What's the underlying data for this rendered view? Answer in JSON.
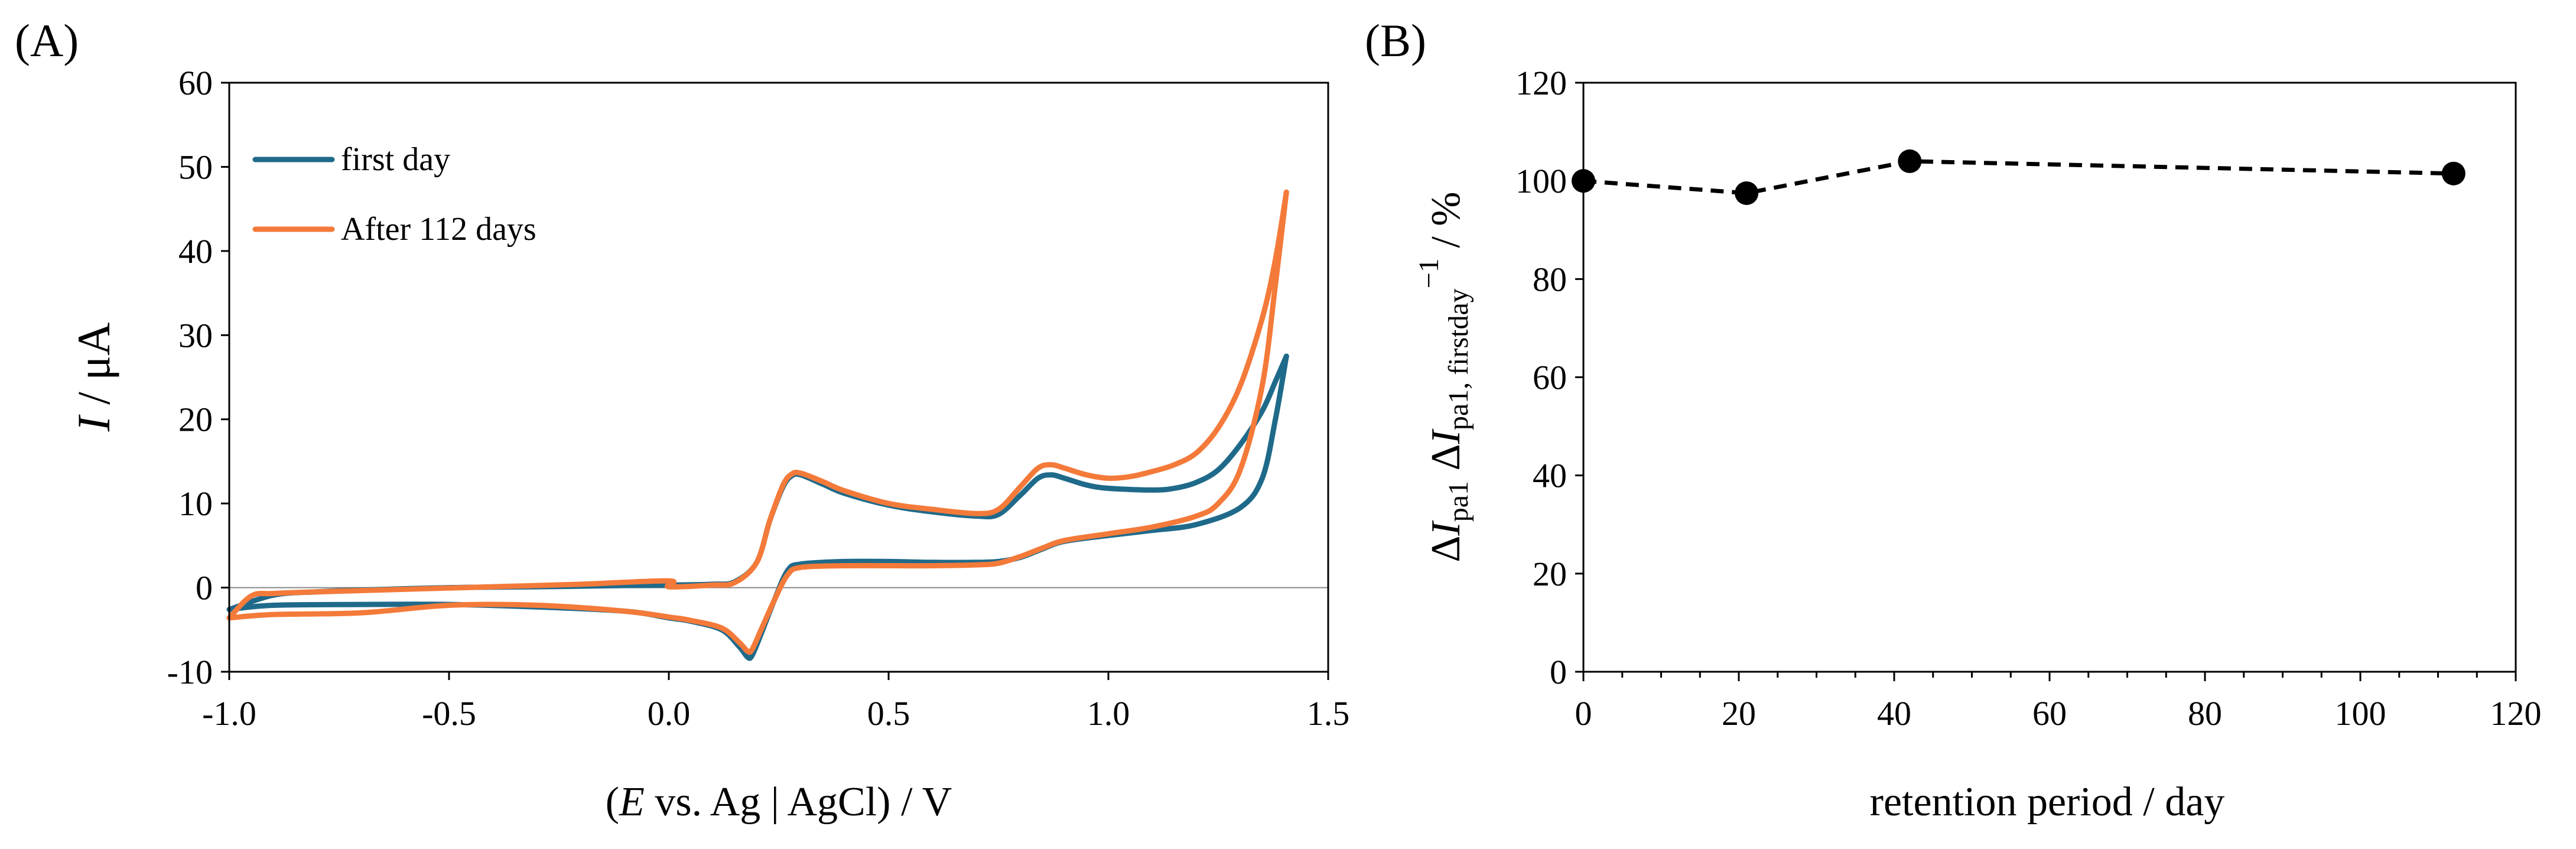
{
  "chart_data": [
    {
      "panel_label": "(A)",
      "type": "line",
      "xlabel": {
        "open": "(",
        "italic": "E",
        "rest": " vs. Ag | AgCl) / V"
      },
      "ylabel": {
        "italic": "I",
        "rest": " / μA"
      },
      "xlim": [
        -1.0,
        1.5
      ],
      "ylim": [
        -10,
        60
      ],
      "x_ticks": [
        "-1.0",
        "-0.5",
        "0.0",
        "0.5",
        "1.0",
        "1.5"
      ],
      "y_ticks": [
        "-10",
        "0",
        "10",
        "20",
        "30",
        "40",
        "50",
        "60"
      ],
      "zero_line": true,
      "legend_position": "top-left",
      "series": [
        {
          "name": "first day",
          "color": "#1f6a8a",
          "forward": [
            [
              -1.0,
              -2.6
            ],
            [
              -0.9,
              -0.9
            ],
            [
              -0.8,
              -0.5
            ],
            [
              -0.7,
              -0.3
            ],
            [
              -0.5,
              0.0
            ],
            [
              -0.3,
              0.1
            ],
            [
              -0.1,
              0.25
            ],
            [
              0.0,
              0.3
            ],
            [
              0.1,
              0.4
            ],
            [
              0.15,
              0.7
            ],
            [
              0.2,
              3.0
            ],
            [
              0.23,
              8.0
            ],
            [
              0.26,
              12.0
            ],
            [
              0.28,
              13.3
            ],
            [
              0.3,
              13.4
            ],
            [
              0.35,
              12.3
            ],
            [
              0.4,
              11.2
            ],
            [
              0.5,
              9.8
            ],
            [
              0.6,
              9.0
            ],
            [
              0.7,
              8.5
            ],
            [
              0.75,
              8.7
            ],
            [
              0.8,
              11.0
            ],
            [
              0.84,
              13.0
            ],
            [
              0.87,
              13.4
            ],
            [
              0.9,
              13.0
            ],
            [
              0.95,
              12.2
            ],
            [
              1.0,
              11.8
            ],
            [
              1.1,
              11.6
            ],
            [
              1.15,
              11.8
            ],
            [
              1.2,
              12.5
            ],
            [
              1.25,
              14.0
            ],
            [
              1.3,
              17.0
            ],
            [
              1.35,
              21.0
            ],
            [
              1.38,
              24.5
            ],
            [
              1.405,
              27.5
            ]
          ],
          "reverse": [
            [
              1.405,
              27.5
            ],
            [
              1.38,
              20.0
            ],
            [
              1.35,
              13.0
            ],
            [
              1.3,
              9.5
            ],
            [
              1.2,
              7.5
            ],
            [
              1.1,
              6.8
            ],
            [
              1.0,
              6.2
            ],
            [
              0.9,
              5.5
            ],
            [
              0.85,
              4.6
            ],
            [
              0.8,
              3.6
            ],
            [
              0.75,
              3.1
            ],
            [
              0.7,
              3.0
            ],
            [
              0.6,
              3.0
            ],
            [
              0.5,
              3.1
            ],
            [
              0.4,
              3.1
            ],
            [
              0.3,
              2.8
            ],
            [
              0.27,
              2.0
            ],
            [
              0.24,
              -1.5
            ],
            [
              0.21,
              -5.5
            ],
            [
              0.19,
              -8.0
            ],
            [
              0.18,
              -8.3
            ],
            [
              0.16,
              -7.0
            ],
            [
              0.12,
              -5.0
            ],
            [
              0.05,
              -4.0
            ],
            [
              0.0,
              -3.6
            ],
            [
              -0.1,
              -2.8
            ],
            [
              -0.3,
              -2.3
            ],
            [
              -0.5,
              -2.0
            ],
            [
              -0.7,
              -2.0
            ],
            [
              -0.9,
              -2.1
            ],
            [
              -1.0,
              -2.6
            ]
          ]
        },
        {
          "name": "After 112 days",
          "color": "#f47a3a",
          "forward": [
            [
              -1.0,
              -3.6
            ],
            [
              -0.95,
              -1.0
            ],
            [
              -0.9,
              -0.7
            ],
            [
              -0.8,
              -0.5
            ],
            [
              -0.6,
              -0.2
            ],
            [
              -0.4,
              0.1
            ],
            [
              -0.2,
              0.4
            ],
            [
              0.0,
              0.8
            ],
            [
              0.0,
              0.1
            ],
            [
              0.1,
              0.3
            ],
            [
              0.15,
              0.6
            ],
            [
              0.2,
              3.0
            ],
            [
              0.23,
              8.0
            ],
            [
              0.26,
              12.2
            ],
            [
              0.28,
              13.5
            ],
            [
              0.3,
              13.6
            ],
            [
              0.35,
              12.6
            ],
            [
              0.4,
              11.5
            ],
            [
              0.5,
              10.0
            ],
            [
              0.6,
              9.3
            ],
            [
              0.7,
              8.8
            ],
            [
              0.75,
              9.3
            ],
            [
              0.8,
              12.0
            ],
            [
              0.84,
              14.2
            ],
            [
              0.87,
              14.6
            ],
            [
              0.9,
              14.2
            ],
            [
              0.95,
              13.4
            ],
            [
              1.0,
              13.0
            ],
            [
              1.05,
              13.2
            ],
            [
              1.1,
              13.8
            ],
            [
              1.15,
              14.6
            ],
            [
              1.2,
              16.0
            ],
            [
              1.25,
              19.0
            ],
            [
              1.3,
              24.0
            ],
            [
              1.35,
              32.0
            ],
            [
              1.38,
              39.0
            ],
            [
              1.405,
              47.0
            ]
          ],
          "reverse": [
            [
              1.405,
              47.0
            ],
            [
              1.38,
              36.0
            ],
            [
              1.35,
              24.0
            ],
            [
              1.3,
              14.0
            ],
            [
              1.25,
              10.0
            ],
            [
              1.2,
              8.5
            ],
            [
              1.1,
              7.2
            ],
            [
              1.0,
              6.4
            ],
            [
              0.9,
              5.6
            ],
            [
              0.85,
              4.7
            ],
            [
              0.8,
              3.7
            ],
            [
              0.75,
              2.9
            ],
            [
              0.7,
              2.7
            ],
            [
              0.6,
              2.6
            ],
            [
              0.5,
              2.6
            ],
            [
              0.4,
              2.6
            ],
            [
              0.3,
              2.4
            ],
            [
              0.27,
              1.5
            ],
            [
              0.24,
              -1.5
            ],
            [
              0.21,
              -5.0
            ],
            [
              0.19,
              -7.3
            ],
            [
              0.18,
              -7.6
            ],
            [
              0.16,
              -6.5
            ],
            [
              0.12,
              -4.8
            ],
            [
              0.05,
              -3.9
            ],
            [
              0.0,
              -3.5
            ],
            [
              -0.1,
              -2.8
            ],
            [
              -0.3,
              -2.1
            ],
            [
              -0.5,
              -2.1
            ],
            [
              -0.7,
              -3.0
            ],
            [
              -0.9,
              -3.2
            ],
            [
              -1.0,
              -3.6
            ]
          ]
        }
      ]
    },
    {
      "panel_label": "(B)",
      "type": "scatter",
      "xlabel": "retention period / day",
      "ylabel": {
        "delta1": "Δ",
        "i1": "I",
        "sub1": "pa1",
        "delta2": " Δ",
        "i2": "I",
        "sub2": "pa1, firstday",
        "sup": "−1",
        "rest": " / %"
      },
      "xlim": [
        0,
        120
      ],
      "ylim": [
        0,
        120
      ],
      "x_ticks": [
        "0",
        "20",
        "40",
        "60",
        "80",
        "100",
        "120"
      ],
      "y_ticks": [
        "0",
        "20",
        "40",
        "60",
        "80",
        "100",
        "120"
      ],
      "line_style": "dashed",
      "color": "#000000",
      "x": [
        0,
        21,
        42,
        112
      ],
      "y": [
        100,
        97.5,
        104,
        101.5
      ]
    }
  ]
}
